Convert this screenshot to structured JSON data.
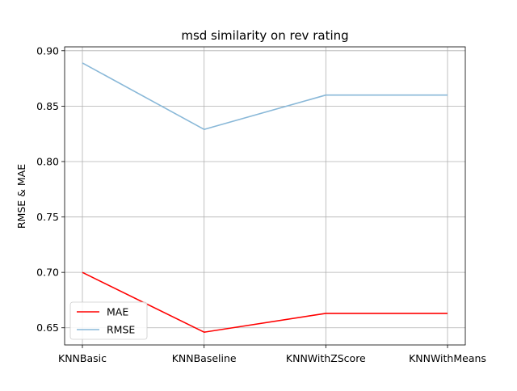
{
  "chart_data": {
    "type": "line",
    "title": "msd similarity on rev rating",
    "xlabel": "",
    "ylabel": "RMSE & MAE",
    "categories": [
      "KNNBasic",
      "KNNBaseline",
      "KNNWithZScore",
      "KNNWithMeans"
    ],
    "series": [
      {
        "name": "MAE",
        "values": [
          0.7,
          0.646,
          0.663,
          0.663
        ],
        "color": "#ff0000"
      },
      {
        "name": "RMSE",
        "values": [
          0.889,
          0.829,
          0.86,
          0.86
        ],
        "color": "#89b8d8"
      }
    ],
    "ylim": [
      0.6345,
      0.9035
    ],
    "yticks": [
      0.65,
      0.7,
      0.75,
      0.8,
      0.85,
      0.9
    ],
    "ytick_labels": [
      "0.65",
      "0.70",
      "0.75",
      "0.80",
      "0.85",
      "0.90"
    ],
    "grid": true,
    "legend_position": "lower-left"
  }
}
